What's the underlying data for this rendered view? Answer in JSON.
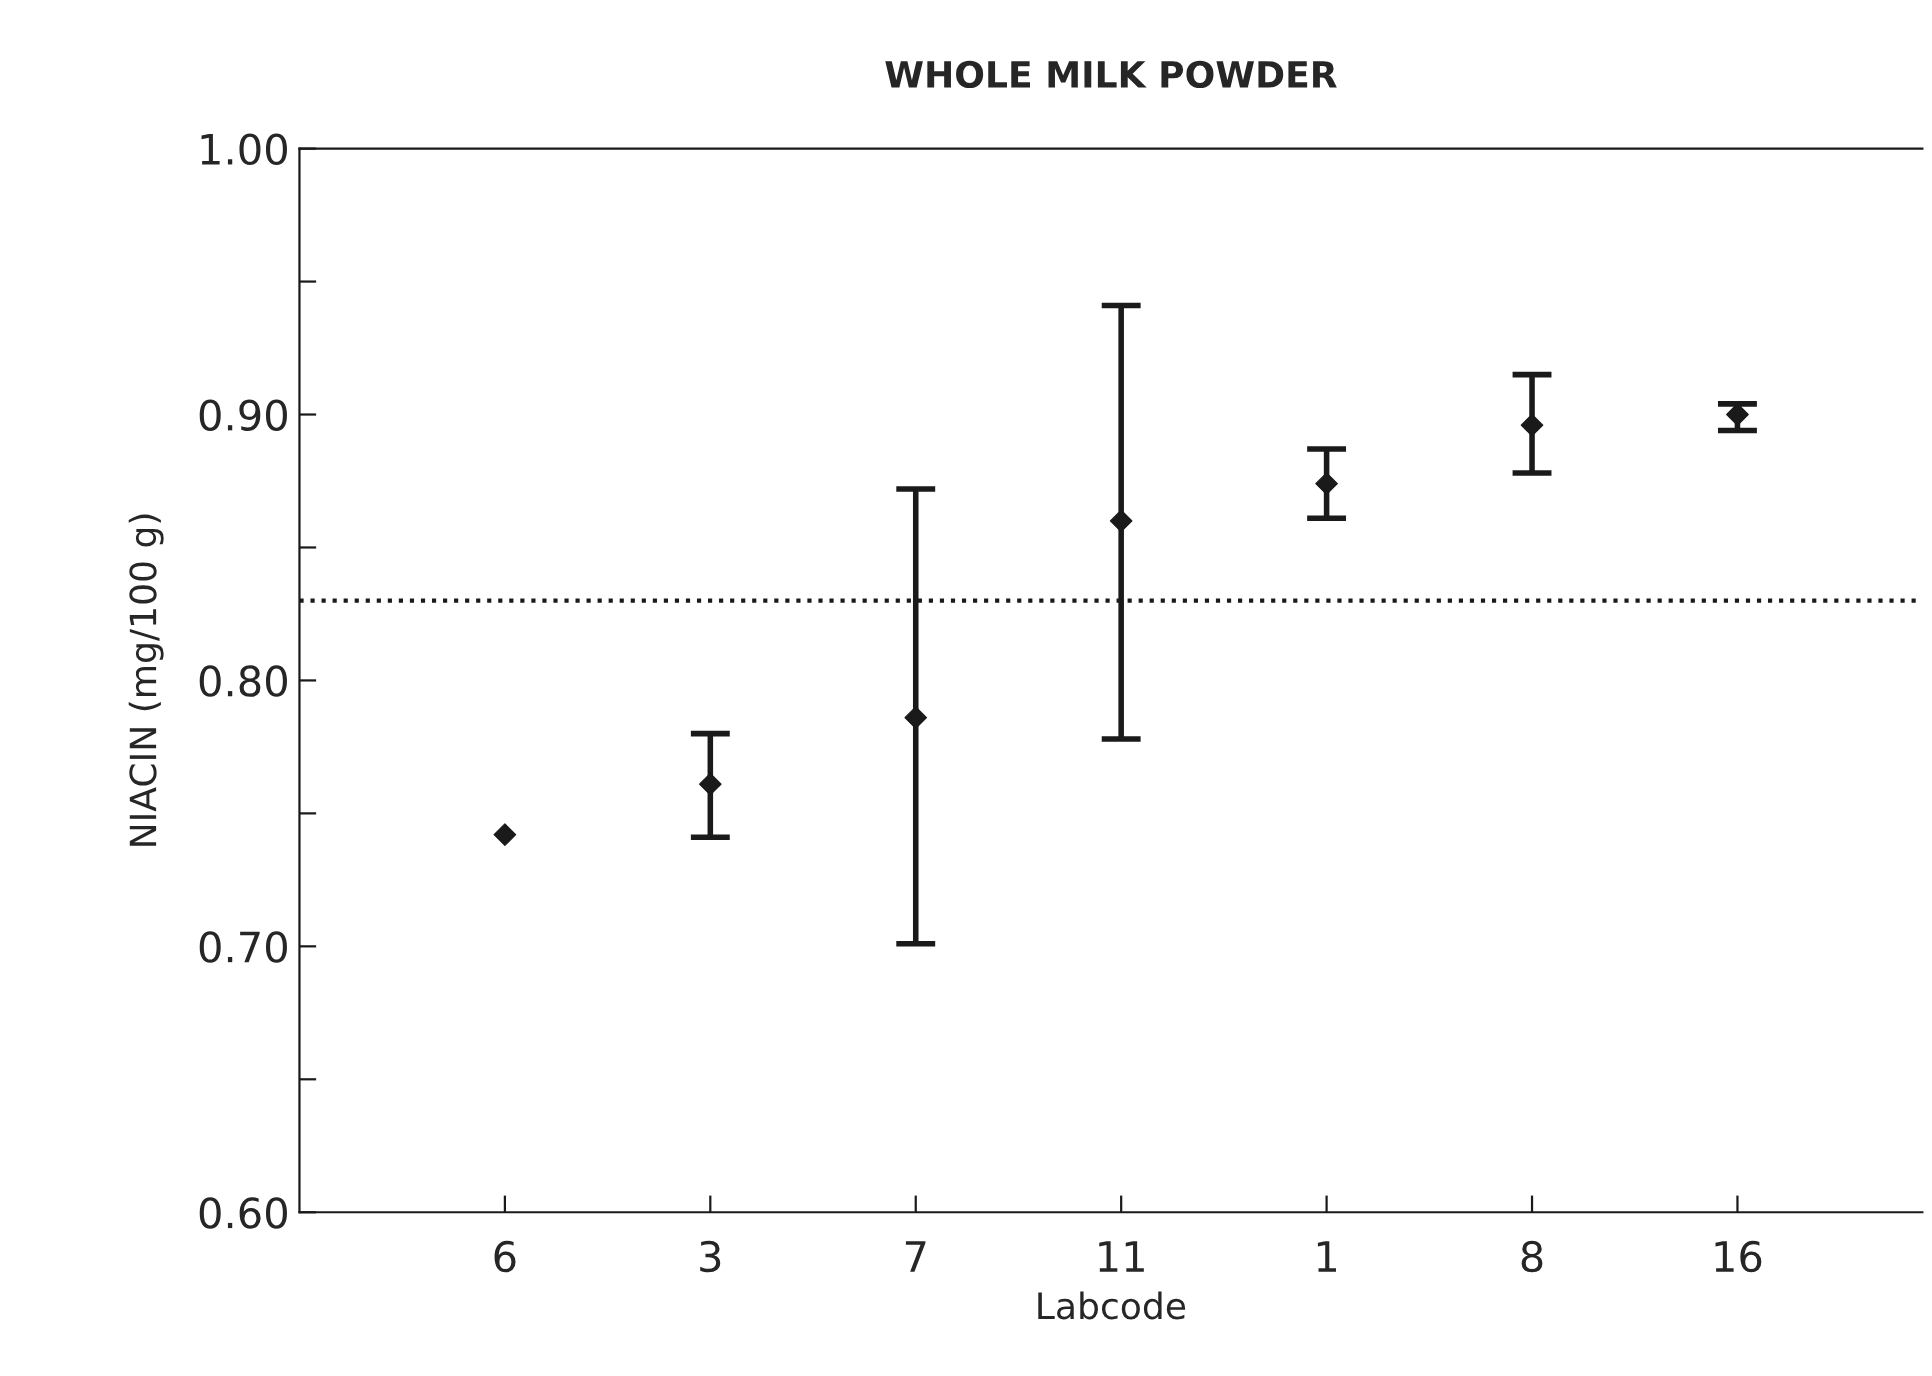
{
  "chart_data": {
    "type": "scatter",
    "title": "WHOLE MILK POWDER",
    "xlabel": "Labcode",
    "ylabel": "NIACIN (mg/100 g)",
    "categories": [
      "6",
      "3",
      "7",
      "11",
      "1",
      "8",
      "16"
    ],
    "series": [
      {
        "color": "#1a1a1a",
        "values": [
          0.742,
          0.761,
          0.786,
          0.86,
          0.874,
          0.896,
          0.9
        ],
        "errors": [
          null,
          [
            0.741,
            0.78
          ],
          [
            0.701,
            0.872
          ],
          [
            0.778,
            0.941
          ],
          [
            0.861,
            0.887
          ],
          [
            0.878,
            0.915
          ],
          [
            0.894,
            0.904
          ]
        ]
      }
    ],
    "ylim": [
      0.6,
      1.0
    ],
    "yticks": [
      {
        "value": 0.6,
        "label": "0.60"
      },
      {
        "value": 0.65,
        "label": null
      },
      {
        "value": 0.7,
        "label": "0.70"
      },
      {
        "value": 0.75,
        "label": null
      },
      {
        "value": 0.8,
        "label": "0.80"
      },
      {
        "value": 0.85,
        "label": null
      },
      {
        "value": 0.9,
        "label": "0.90"
      },
      {
        "value": 0.95,
        "label": null
      },
      {
        "value": 1.0,
        "label": "1.00"
      }
    ],
    "ref_lines": [
      {
        "axis": "y",
        "value": 0.83,
        "line_style": "dotted",
        "color": "#1a1a1a"
      }
    ],
    "marker": "diamond",
    "grid": false,
    "legend": false
  }
}
